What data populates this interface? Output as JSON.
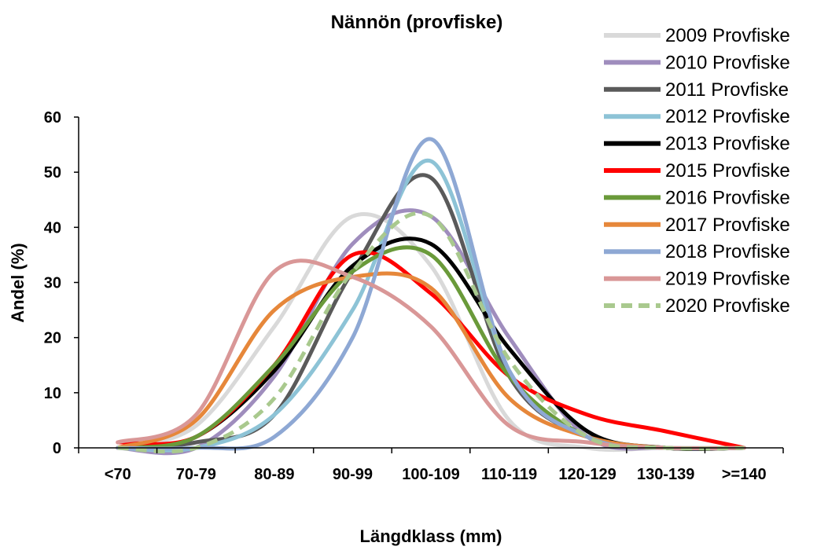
{
  "chart_data": {
    "type": "line",
    "title": "Nännön (provfiske)",
    "xlabel": "Längdklass (mm)",
    "ylabel": "Andel (%)",
    "categories": [
      "<70",
      "70-79",
      "80-89",
      "90-99",
      "100-109",
      "110-119",
      "120-129",
      "130-139",
      ">=140"
    ],
    "ylim": [
      0,
      60
    ],
    "yticks": [
      0,
      10,
      20,
      30,
      40,
      50,
      60
    ],
    "grid": false,
    "legend_position": "right",
    "series": [
      {
        "name": "2009 Provfiske",
        "color": "#d9d9d9",
        "values": [
          0,
          4,
          22,
          42,
          33,
          5,
          0,
          0,
          0
        ]
      },
      {
        "name": "2010 Provfiske",
        "color": "#9f8dbd",
        "values": [
          0,
          0,
          13,
          37,
          42,
          20,
          2,
          0,
          0
        ]
      },
      {
        "name": "2011 Provfiske",
        "color": "#5a5a5a",
        "values": [
          0,
          1,
          6,
          32,
          49,
          13,
          2,
          0,
          0
        ]
      },
      {
        "name": "2012 Provfiske",
        "color": "#8dc3d6",
        "values": [
          0,
          0,
          6,
          25,
          52,
          14,
          2,
          0,
          0
        ]
      },
      {
        "name": "2013 Provfiske",
        "color": "#000000",
        "values": [
          0,
          2,
          14,
          33,
          37,
          18,
          3,
          0,
          0
        ]
      },
      {
        "name": "2015 Provfiske",
        "color": "#ff0000",
        "values": [
          1,
          2,
          15,
          35,
          28,
          13,
          6,
          3,
          0
        ]
      },
      {
        "name": "2016 Provfiske",
        "color": "#6a9a3a",
        "values": [
          0,
          2,
          15,
          32,
          35,
          13,
          2,
          0,
          0
        ]
      },
      {
        "name": "2017 Provfiske",
        "color": "#e6873a",
        "values": [
          0,
          5,
          25,
          31,
          29,
          9,
          2,
          0,
          0
        ]
      },
      {
        "name": "2018 Provfiske",
        "color": "#8ea8d4",
        "values": [
          0,
          0,
          2,
          20,
          56,
          14,
          2,
          0,
          0
        ]
      },
      {
        "name": "2019 Provfiske",
        "color": "#d99797",
        "values": [
          1,
          6,
          32,
          31,
          22,
          4,
          1,
          0,
          0
        ]
      },
      {
        "name": "2020 Provfiske",
        "color": "#a9c98e",
        "dashed": true,
        "values": [
          0,
          0,
          9,
          32,
          42,
          16,
          2,
          0,
          0
        ]
      }
    ]
  }
}
